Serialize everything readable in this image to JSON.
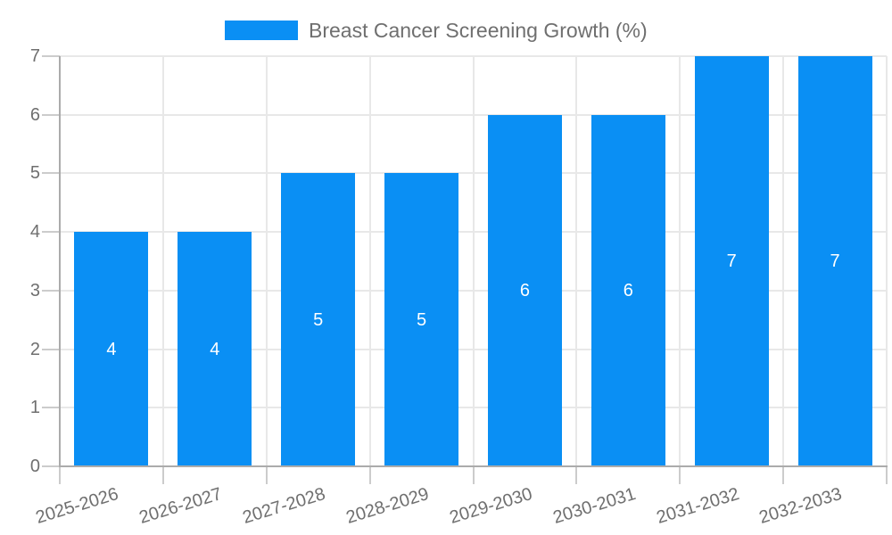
{
  "chart_data": {
    "type": "bar",
    "legend": {
      "label": "Breast Cancer Screening Growth (%)",
      "position": "top-center"
    },
    "categories": [
      "2025-2026",
      "2026-2027",
      "2027-2028",
      "2028-2029",
      "2029-2030",
      "2030-2031",
      "2031-2032",
      "2032-2033"
    ],
    "values": [
      4,
      4,
      5,
      5,
      6,
      6,
      7,
      7
    ],
    "bar_labels": [
      "4",
      "4",
      "5",
      "5",
      "6",
      "6",
      "7",
      "7"
    ],
    "yticks": [
      "0",
      "1",
      "2",
      "3",
      "4",
      "5",
      "6",
      "7"
    ],
    "ylim": [
      0,
      7
    ],
    "grid": "both",
    "x_label_rotation_deg": -17,
    "colors": {
      "bar": "#0a8ff4",
      "bar_label": "#ffffff",
      "axis_text": "#6f6f6f",
      "gridline": "#e8e8e8",
      "axis_line": "#ababab",
      "tick_mark": "#cccccc"
    }
  }
}
